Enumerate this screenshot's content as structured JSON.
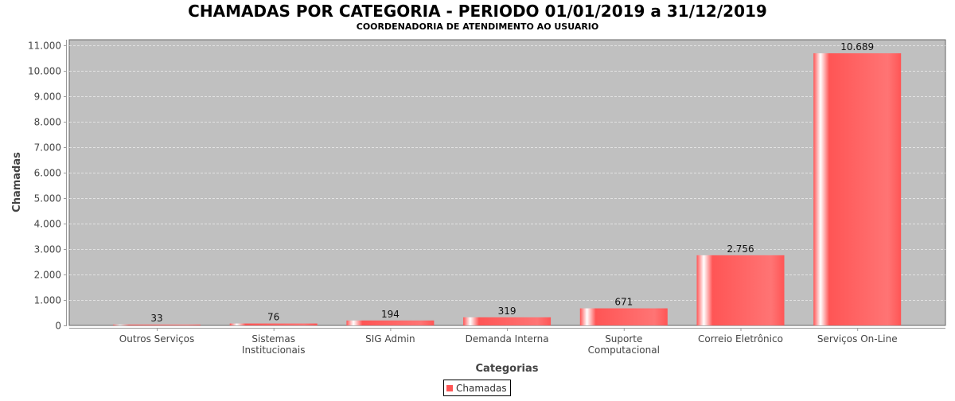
{
  "chart_data": {
    "type": "bar",
    "title": "CHAMADAS POR CATEGORIA - PERIODO 01/01/2019 a 31/12/2019",
    "subtitle": "COORDENADORIA DE ATENDIMENTO AO USUARIO",
    "xlabel": "Categorias",
    "ylabel": "Chamadas",
    "ylim": [
      0,
      11000
    ],
    "yticks": [
      0,
      1000,
      2000,
      3000,
      4000,
      5000,
      6000,
      7000,
      8000,
      9000,
      10000,
      11000
    ],
    "ytick_labels": [
      "0",
      "1.000",
      "2.000",
      "3.000",
      "4.000",
      "5.000",
      "6.000",
      "7.000",
      "8.000",
      "9.000",
      "10.000",
      "11.000"
    ],
    "categories": [
      [
        "Outros Serviços"
      ],
      [
        "Sistemas",
        "Institucionais"
      ],
      [
        "SIG Admin"
      ],
      [
        "Demanda Interna"
      ],
      [
        "Suporte",
        "Computacional"
      ],
      [
        "Correio Eletrônico"
      ],
      [
        "Serviços On-Line"
      ]
    ],
    "series": [
      {
        "name": "Chamadas",
        "values": [
          33,
          76,
          194,
          319,
          671,
          2756,
          10689
        ],
        "labels": [
          "33",
          "76",
          "194",
          "319",
          "671",
          "2.756",
          "10.689"
        ],
        "color": "#ff5555"
      }
    ],
    "grid": true,
    "legend": "bottom-center",
    "plot_background": "#c0c0c0"
  }
}
